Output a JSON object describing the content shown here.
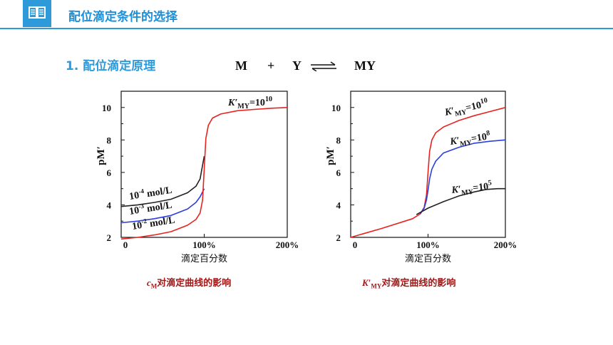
{
  "header": {
    "title": "配位滴定条件的选择",
    "icon": "book-icon"
  },
  "section": {
    "title": "1. 配位滴定原理"
  },
  "equation": {
    "left": "M",
    "plus": "+",
    "reactant": "Y",
    "arrow": "equilibrium-arrow",
    "product": "MY"
  },
  "captions": {
    "left": {
      "main": "c",
      "sub": "M",
      "rest": "对滴定曲线的影响"
    },
    "right": {
      "main": "K′",
      "sub": "MY",
      "rest": "对滴定曲线的影响"
    }
  },
  "colors": {
    "accent": "#2e9ad9",
    "caption": "#a01818",
    "red": "#e8231f",
    "blue": "#2a3fe0",
    "black": "#222222"
  },
  "chart_data": [
    {
      "type": "line",
      "title": "",
      "xlabel": "滴定百分数",
      "ylabel": "pM′",
      "xlim": [
        0,
        200
      ],
      "ylim": [
        2,
        11
      ],
      "x_ticks": [
        "0",
        "100%",
        "200%"
      ],
      "x_tick_values": [
        0,
        100,
        200
      ],
      "y_ticks": [
        "2",
        "4",
        "6",
        "8",
        "10"
      ],
      "y_tick_values": [
        2,
        4,
        6,
        8,
        10
      ],
      "series": [
        {
          "name": "10-4 mol/L",
          "color": "#222222",
          "x": [
            0,
            20,
            40,
            60,
            80,
            90,
            95,
            100
          ],
          "y": [
            3.9,
            4.0,
            4.15,
            4.35,
            4.75,
            5.15,
            5.6,
            7.0
          ]
        },
        {
          "name": "10-3 mol/L",
          "color": "#2a3fe0",
          "x": [
            0,
            20,
            40,
            60,
            80,
            90,
            95,
            100
          ],
          "y": [
            2.9,
            3.0,
            3.15,
            3.35,
            3.75,
            4.15,
            4.5,
            5.0
          ]
        },
        {
          "name": "10-2 mol/L",
          "color": "#e8231f",
          "x": [
            0,
            20,
            40,
            60,
            80,
            90,
            95,
            98,
            100,
            102,
            105,
            110,
            120,
            140,
            160,
            180,
            200
          ],
          "y": [
            1.9,
            2.0,
            2.15,
            2.35,
            2.75,
            3.1,
            3.5,
            4.3,
            6.2,
            8.1,
            8.9,
            9.35,
            9.6,
            9.8,
            9.88,
            9.95,
            10.0
          ]
        }
      ],
      "labels": {
        "k_main": "K′",
        "k_sub": "MY",
        "k_eq": "=10",
        "k_exp": "10",
        "conc": [
          {
            "base": "10",
            "exp": "-4",
            "unit": " mol/L"
          },
          {
            "base": "10",
            "exp": "-3",
            "unit": " mol/L"
          },
          {
            "base": "10",
            "exp": "-2",
            "unit": " mol/L"
          }
        ]
      }
    },
    {
      "type": "line",
      "title": "",
      "xlabel": "滴定百分数",
      "ylabel": "pM′",
      "xlim": [
        0,
        200
      ],
      "ylim": [
        2,
        11
      ],
      "x_ticks": [
        "0",
        "100%",
        "200%"
      ],
      "x_tick_values": [
        0,
        100,
        200
      ],
      "y_ticks": [
        "2",
        "4",
        "6",
        "8",
        "10"
      ],
      "y_tick_values": [
        2,
        4,
        6,
        8,
        10
      ],
      "series": [
        {
          "name": "K′MY=10^10",
          "color": "#e8231f",
          "x": [
            0,
            40,
            80,
            90,
            95,
            98,
            100,
            102,
            105,
            110,
            120,
            140,
            160,
            180,
            200
          ],
          "y": [
            2.0,
            2.55,
            3.15,
            3.45,
            3.85,
            4.6,
            6.0,
            7.3,
            8.0,
            8.45,
            8.8,
            9.2,
            9.5,
            9.75,
            10.0
          ]
        },
        {
          "name": "K′MY=10^8",
          "color": "#2a3fe0",
          "x": [
            90,
            95,
            98,
            100,
            102,
            105,
            110,
            120,
            140,
            160,
            180,
            200
          ],
          "y": [
            3.45,
            3.8,
            4.3,
            4.9,
            5.6,
            6.2,
            6.7,
            7.2,
            7.55,
            7.8,
            7.92,
            8.0
          ]
        },
        {
          "name": "K′MY=10^5",
          "color": "#222222",
          "x": [
            85,
            100,
            120,
            140,
            160,
            175,
            190,
            200
          ],
          "y": [
            3.4,
            3.8,
            4.2,
            4.55,
            4.8,
            4.95,
            5.0,
            5.0
          ]
        }
      ],
      "labels": {
        "k_main": "K′",
        "k_sub": "MY",
        "k": [
          {
            "eq": "=10",
            "exp": "10"
          },
          {
            "eq": "=10",
            "exp": "8"
          },
          {
            "eq": "=10",
            "exp": "5"
          }
        ]
      }
    }
  ]
}
